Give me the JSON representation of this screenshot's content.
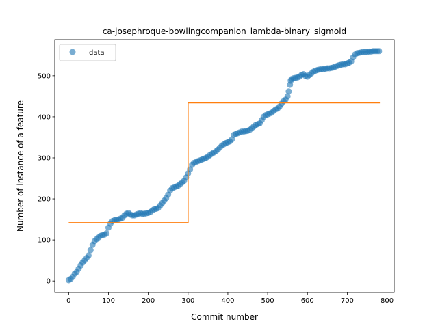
{
  "chart_data": {
    "type": "scatter",
    "title": "ca-josephroque-bowlingcompanion_lambda-binary_sigmoid",
    "xlabel": "Commit number",
    "ylabel": "Number of instance of a feature",
    "xlim": [
      -35,
      818
    ],
    "ylim": [
      -28,
      588
    ],
    "xticks": [
      0,
      100,
      200,
      300,
      400,
      500,
      600,
      700,
      800
    ],
    "yticks": [
      0,
      100,
      200,
      300,
      400,
      500
    ],
    "grid": false,
    "legend": {
      "placement": "top-left",
      "entries": [
        "data"
      ]
    },
    "series": [
      {
        "name": "data",
        "kind": "scatter",
        "color": "#1f77b4",
        "points": [
          [
            0,
            2
          ],
          [
            5,
            5
          ],
          [
            10,
            10
          ],
          [
            15,
            18
          ],
          [
            20,
            22
          ],
          [
            25,
            30
          ],
          [
            30,
            38
          ],
          [
            35,
            45
          ],
          [
            40,
            50
          ],
          [
            45,
            56
          ],
          [
            50,
            62
          ],
          [
            55,
            75
          ],
          [
            60,
            88
          ],
          [
            65,
            97
          ],
          [
            70,
            102
          ],
          [
            75,
            106
          ],
          [
            80,
            110
          ],
          [
            85,
            112
          ],
          [
            90,
            113
          ],
          [
            95,
            116
          ],
          [
            100,
            130
          ],
          [
            105,
            140
          ],
          [
            110,
            146
          ],
          [
            115,
            148
          ],
          [
            120,
            149
          ],
          [
            125,
            150
          ],
          [
            130,
            152
          ],
          [
            135,
            154
          ],
          [
            140,
            160
          ],
          [
            145,
            164
          ],
          [
            150,
            166
          ],
          [
            155,
            162
          ],
          [
            160,
            160
          ],
          [
            165,
            160
          ],
          [
            170,
            162
          ],
          [
            175,
            164
          ],
          [
            180,
            165
          ],
          [
            185,
            164
          ],
          [
            190,
            164
          ],
          [
            195,
            165
          ],
          [
            200,
            166
          ],
          [
            205,
            168
          ],
          [
            210,
            172
          ],
          [
            215,
            175
          ],
          [
            220,
            176
          ],
          [
            225,
            178
          ],
          [
            230,
            184
          ],
          [
            235,
            190
          ],
          [
            240,
            196
          ],
          [
            245,
            202
          ],
          [
            250,
            210
          ],
          [
            255,
            220
          ],
          [
            260,
            226
          ],
          [
            265,
            228
          ],
          [
            270,
            230
          ],
          [
            275,
            232
          ],
          [
            280,
            236
          ],
          [
            285,
            240
          ],
          [
            290,
            244
          ],
          [
            295,
            252
          ],
          [
            300,
            262
          ],
          [
            305,
            272
          ],
          [
            310,
            283
          ],
          [
            315,
            288
          ],
          [
            320,
            290
          ],
          [
            325,
            292
          ],
          [
            330,
            294
          ],
          [
            335,
            296
          ],
          [
            340,
            298
          ],
          [
            345,
            300
          ],
          [
            350,
            303
          ],
          [
            355,
            307
          ],
          [
            360,
            310
          ],
          [
            365,
            313
          ],
          [
            370,
            316
          ],
          [
            375,
            320
          ],
          [
            380,
            325
          ],
          [
            385,
            330
          ],
          [
            390,
            333
          ],
          [
            395,
            336
          ],
          [
            400,
            338
          ],
          [
            405,
            340
          ],
          [
            410,
            345
          ],
          [
            415,
            356
          ],
          [
            420,
            358
          ],
          [
            425,
            360
          ],
          [
            430,
            362
          ],
          [
            435,
            364
          ],
          [
            440,
            364
          ],
          [
            445,
            365
          ],
          [
            450,
            366
          ],
          [
            455,
            368
          ],
          [
            460,
            372
          ],
          [
            465,
            376
          ],
          [
            470,
            380
          ],
          [
            475,
            382
          ],
          [
            480,
            384
          ],
          [
            485,
            392
          ],
          [
            490,
            400
          ],
          [
            495,
            404
          ],
          [
            500,
            406
          ],
          [
            505,
            408
          ],
          [
            510,
            410
          ],
          [
            515,
            414
          ],
          [
            520,
            418
          ],
          [
            525,
            420
          ],
          [
            530,
            425
          ],
          [
            535,
            432
          ],
          [
            540,
            438
          ],
          [
            545,
            442
          ],
          [
            550,
            450
          ],
          [
            553,
            462
          ],
          [
            556,
            478
          ],
          [
            558,
            488
          ],
          [
            560,
            492
          ],
          [
            565,
            494
          ],
          [
            570,
            495
          ],
          [
            575,
            496
          ],
          [
            580,
            498
          ],
          [
            585,
            502
          ],
          [
            590,
            504
          ],
          [
            595,
            500
          ],
          [
            600,
            498
          ],
          [
            605,
            502
          ],
          [
            610,
            506
          ],
          [
            615,
            510
          ],
          [
            620,
            512
          ],
          [
            625,
            514
          ],
          [
            630,
            515
          ],
          [
            635,
            516
          ],
          [
            640,
            516
          ],
          [
            645,
            517
          ],
          [
            650,
            518
          ],
          [
            655,
            518
          ],
          [
            660,
            519
          ],
          [
            665,
            520
          ],
          [
            670,
            522
          ],
          [
            675,
            524
          ],
          [
            680,
            526
          ],
          [
            685,
            527
          ],
          [
            690,
            528
          ],
          [
            695,
            528
          ],
          [
            700,
            530
          ],
          [
            705,
            532
          ],
          [
            710,
            535
          ],
          [
            715,
            545
          ],
          [
            720,
            552
          ],
          [
            725,
            555
          ],
          [
            730,
            556
          ],
          [
            735,
            557
          ],
          [
            740,
            558
          ],
          [
            745,
            558
          ],
          [
            750,
            558
          ],
          [
            755,
            559
          ],
          [
            760,
            559
          ],
          [
            765,
            560
          ],
          [
            770,
            560
          ],
          [
            775,
            560
          ],
          [
            780,
            560
          ]
        ]
      },
      {
        "name": "",
        "kind": "step",
        "color": "#ff7f0e",
        "x": [
          0,
          300,
          300,
          782
        ],
        "y": [
          142,
          142,
          434,
          434
        ]
      }
    ]
  }
}
